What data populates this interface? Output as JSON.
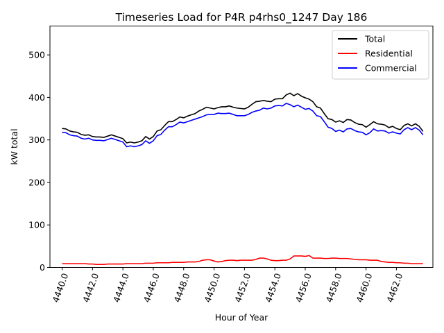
{
  "chart_data": {
    "type": "line",
    "title": "Timeseries Load for P4R p4rhs0_1247  Day 186",
    "xlabel": "Hour of Year",
    "ylabel": "kW total",
    "xlim": [
      4439.2,
      4464.4
    ],
    "ylim": [
      0,
      568
    ],
    "yticks": [
      0,
      100,
      200,
      300,
      400,
      500
    ],
    "ytick_labels": [
      "0",
      "100",
      "200",
      "300",
      "400",
      "500"
    ],
    "xticks": [
      4440,
      4442,
      4444,
      4446,
      4448,
      4450,
      4452,
      4454,
      4456,
      4458,
      4460,
      4462
    ],
    "xtick_labels": [
      "4440.0",
      "4442.0",
      "4444.0",
      "4446.0",
      "4448.0",
      "4450.0",
      "4452.0",
      "4454.0",
      "4456.0",
      "4458.0",
      "4460.0",
      "4462.0"
    ],
    "legend_position": "upper-right",
    "x": [
      4440.0,
      4440.25,
      4440.5,
      4440.75,
      4441.0,
      4441.25,
      4441.5,
      4441.75,
      4442.0,
      4442.25,
      4442.5,
      4442.75,
      4443.0,
      4443.25,
      4443.5,
      4443.75,
      4444.0,
      4444.25,
      4444.5,
      4444.75,
      4445.0,
      4445.25,
      4445.5,
      4445.75,
      4446.0,
      4446.25,
      4446.5,
      4446.75,
      4447.0,
      4447.25,
      4447.5,
      4447.75,
      4448.0,
      4448.25,
      4448.5,
      4448.75,
      4449.0,
      4449.25,
      4449.5,
      4449.75,
      4450.0,
      4450.25,
      4450.5,
      4450.75,
      4451.0,
      4451.25,
      4451.5,
      4451.75,
      4452.0,
      4452.25,
      4452.5,
      4452.75,
      4453.0,
      4453.25,
      4453.5,
      4453.75,
      4454.0,
      4454.25,
      4454.5,
      4454.75,
      4455.0,
      4455.25,
      4455.5,
      4455.75,
      4456.0,
      4456.25,
      4456.5,
      4456.75,
      4457.0,
      4457.25,
      4457.5,
      4457.75,
      4458.0,
      4458.25,
      4458.5,
      4458.75,
      4459.0,
      4459.25,
      4459.5,
      4459.75,
      4460.0,
      4460.25,
      4460.5,
      4460.75,
      4461.0,
      4461.25,
      4461.5,
      4461.75,
      4462.0,
      4462.25,
      4462.5,
      4462.75,
      4463.0,
      4463.25,
      4463.5,
      4463.75
    ],
    "series": [
      {
        "name": "Total",
        "color": "#000000",
        "values": [
          327,
          326,
          321,
          319,
          318,
          313,
          311,
          312,
          308,
          307,
          307,
          306,
          309,
          312,
          309,
          306,
          303,
          293,
          295,
          293,
          295,
          298,
          308,
          302,
          308,
          321,
          324,
          334,
          343,
          343,
          348,
          354,
          352,
          356,
          359,
          362,
          368,
          372,
          377,
          375,
          373,
          376,
          378,
          378,
          380,
          377,
          375,
          374,
          373,
          377,
          384,
          390,
          391,
          393,
          391,
          390,
          396,
          397,
          397,
          406,
          410,
          404,
          409,
          403,
          399,
          396,
          390,
          378,
          375,
          362,
          350,
          348,
          342,
          345,
          341,
          348,
          347,
          341,
          337,
          336,
          330,
          336,
          343,
          338,
          337,
          335,
          329,
          332,
          327,
          324,
          334,
          338,
          333,
          338,
          332,
          320
        ]
      },
      {
        "name": "Residential",
        "color": "#ff0000",
        "values": [
          9,
          9,
          9,
          9,
          9,
          9,
          9,
          8,
          8,
          7,
          7,
          7,
          8,
          8,
          8,
          8,
          8,
          9,
          9,
          9,
          9,
          9,
          10,
          10,
          10,
          11,
          11,
          11,
          11,
          12,
          12,
          12,
          12,
          13,
          13,
          13,
          14,
          17,
          18,
          18,
          15,
          13,
          14,
          16,
          17,
          17,
          16,
          17,
          17,
          17,
          17,
          19,
          22,
          22,
          20,
          17,
          16,
          16,
          17,
          17,
          20,
          27,
          27,
          27,
          26,
          28,
          22,
          22,
          22,
          21,
          21,
          22,
          22,
          21,
          21,
          21,
          20,
          19,
          18,
          18,
          18,
          17,
          17,
          17,
          14,
          13,
          12,
          12,
          11,
          11,
          10,
          10,
          9,
          9,
          9,
          9
        ]
      },
      {
        "name": "Commercial",
        "color": "#0000ff",
        "values": [
          318,
          317,
          312,
          310,
          309,
          304,
          302,
          304,
          300,
          299,
          299,
          298,
          301,
          304,
          301,
          298,
          295,
          284,
          286,
          284,
          286,
          289,
          298,
          292,
          298,
          310,
          313,
          323,
          331,
          331,
          336,
          342,
          340,
          343,
          346,
          349,
          352,
          355,
          359,
          360,
          360,
          363,
          362,
          362,
          363,
          360,
          357,
          357,
          357,
          360,
          365,
          368,
          370,
          375,
          373,
          375,
          380,
          381,
          380,
          386,
          383,
          378,
          382,
          377,
          372,
          374,
          368,
          357,
          355,
          343,
          330,
          327,
          320,
          323,
          319,
          326,
          327,
          322,
          319,
          318,
          312,
          317,
          326,
          321,
          322,
          321,
          316,
          319,
          316,
          314,
          324,
          329,
          324,
          329,
          323,
          312
        ]
      }
    ]
  }
}
